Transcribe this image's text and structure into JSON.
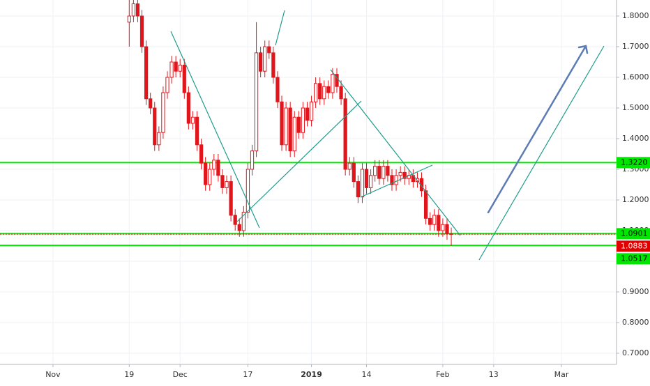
{
  "chart_data": {
    "type": "candlestick",
    "x": [
      18,
      19,
      20,
      21,
      22,
      23,
      24,
      25,
      26,
      27,
      28,
      29,
      30,
      31,
      32,
      33,
      34,
      35,
      36,
      37,
      38,
      39,
      40,
      41,
      42,
      43,
      44,
      45,
      46,
      47,
      48,
      49,
      50,
      51,
      52,
      53,
      54,
      55,
      56,
      57,
      58,
      59,
      60,
      61,
      62,
      63,
      64,
      65,
      66,
      67,
      68,
      69,
      70,
      71,
      72,
      73,
      74,
      75,
      76,
      77,
      78,
      79,
      80,
      81,
      82,
      83,
      84,
      85,
      86,
      87,
      88,
      89,
      90,
      91,
      92,
      93,
      94
    ],
    "open": [
      1.78,
      1.8,
      1.84,
      1.8,
      1.7,
      1.53,
      1.5,
      1.38,
      1.42,
      1.55,
      1.6,
      1.65,
      1.62,
      1.64,
      1.55,
      1.45,
      1.47,
      1.38,
      1.32,
      1.25,
      1.3,
      1.33,
      1.28,
      1.24,
      1.26,
      1.15,
      1.12,
      1.1,
      1.16,
      1.3,
      1.36,
      1.68,
      1.62,
      1.7,
      1.68,
      1.6,
      1.52,
      1.38,
      1.5,
      1.36,
      1.47,
      1.42,
      1.5,
      1.46,
      1.52,
      1.58,
      1.53,
      1.57,
      1.55,
      1.61,
      1.57,
      1.53,
      1.3,
      1.32,
      1.26,
      1.21,
      1.3,
      1.24,
      1.28,
      1.31,
      1.27,
      1.31,
      1.28,
      1.25,
      1.28,
      1.29,
      1.27,
      1.28,
      1.26,
      1.27,
      1.23,
      1.14,
      1.12,
      1.15,
      1.1,
      1.12,
      1.09
    ],
    "high": [
      1.86,
      1.86,
      1.86,
      1.82,
      1.72,
      1.55,
      1.52,
      1.44,
      1.57,
      1.62,
      1.67,
      1.67,
      1.66,
      1.66,
      1.57,
      1.49,
      1.49,
      1.4,
      1.34,
      1.32,
      1.35,
      1.35,
      1.3,
      1.28,
      1.28,
      1.17,
      1.14,
      1.18,
      1.32,
      1.38,
      1.78,
      1.7,
      1.72,
      1.72,
      1.7,
      1.62,
      1.54,
      1.52,
      1.52,
      1.49,
      1.49,
      1.52,
      1.52,
      1.54,
      1.6,
      1.6,
      1.59,
      1.59,
      1.63,
      1.63,
      1.59,
      1.55,
      1.34,
      1.34,
      1.28,
      1.32,
      1.32,
      1.3,
      1.33,
      1.33,
      1.33,
      1.33,
      1.3,
      1.3,
      1.31,
      1.31,
      1.3,
      1.3,
      1.29,
      1.29,
      1.25,
      1.16,
      1.17,
      1.17,
      1.14,
      1.14,
      1.11
    ],
    "low": [
      1.7,
      1.78,
      1.78,
      1.68,
      1.51,
      1.48,
      1.36,
      1.36,
      1.4,
      1.53,
      1.58,
      1.6,
      1.6,
      1.53,
      1.43,
      1.43,
      1.36,
      1.3,
      1.23,
      1.23,
      1.28,
      1.26,
      1.22,
      1.22,
      1.13,
      1.1,
      1.08,
      1.08,
      1.14,
      1.28,
      1.34,
      1.6,
      1.6,
      1.66,
      1.58,
      1.5,
      1.36,
      1.36,
      1.34,
      1.34,
      1.4,
      1.4,
      1.44,
      1.44,
      1.5,
      1.51,
      1.51,
      1.53,
      1.53,
      1.55,
      1.51,
      1.28,
      1.28,
      1.24,
      1.19,
      1.19,
      1.22,
      1.22,
      1.26,
      1.25,
      1.25,
      1.26,
      1.23,
      1.23,
      1.26,
      1.25,
      1.25,
      1.24,
      1.24,
      1.21,
      1.12,
      1.1,
      1.1,
      1.08,
      1.08,
      1.07,
      1.05
    ],
    "close": [
      1.8,
      1.84,
      1.8,
      1.7,
      1.53,
      1.5,
      1.38,
      1.42,
      1.55,
      1.6,
      1.65,
      1.62,
      1.64,
      1.55,
      1.45,
      1.47,
      1.38,
      1.32,
      1.25,
      1.3,
      1.33,
      1.28,
      1.24,
      1.26,
      1.15,
      1.12,
      1.1,
      1.16,
      1.3,
      1.36,
      1.68,
      1.62,
      1.7,
      1.68,
      1.6,
      1.52,
      1.38,
      1.5,
      1.36,
      1.47,
      1.42,
      1.5,
      1.46,
      1.52,
      1.58,
      1.53,
      1.57,
      1.55,
      1.61,
      1.57,
      1.53,
      1.3,
      1.32,
      1.26,
      1.21,
      1.3,
      1.24,
      1.28,
      1.31,
      1.27,
      1.31,
      1.28,
      1.25,
      1.28,
      1.29,
      1.27,
      1.28,
      1.26,
      1.27,
      1.23,
      1.14,
      1.12,
      1.15,
      1.1,
      1.12,
      1.09,
      1.0883
    ],
    "color": "#e0161c",
    "xlim": [
      -12.5,
      133
    ],
    "xticks": [
      {
        "value": 0,
        "label": "Nov"
      },
      {
        "value": 18,
        "label": "19"
      },
      {
        "value": 30,
        "label": "Dec"
      },
      {
        "value": 46,
        "label": "17"
      },
      {
        "value": 61,
        "label": "2019"
      },
      {
        "value": 74,
        "label": "14"
      },
      {
        "value": 92,
        "label": "Feb"
      },
      {
        "value": 104,
        "label": "13"
      },
      {
        "value": 120,
        "label": "Mar"
      }
    ],
    "ylim": [
      0.6636,
      1.8523
    ],
    "yticks": [
      {
        "value": 1.8,
        "label": "1.8000"
      },
      {
        "value": 1.7,
        "label": "1.7000"
      },
      {
        "value": 1.6,
        "label": "1.6000"
      },
      {
        "value": 1.5,
        "label": "1.5000"
      },
      {
        "value": 1.4,
        "label": "1.4000"
      },
      {
        "value": 1.3,
        "label": "1.3000"
      },
      {
        "value": 1.2,
        "label": "1.2000"
      },
      {
        "value": 1.1,
        "label": "1.1000"
      },
      {
        "value": 1.0,
        "label": "1.0000"
      },
      {
        "value": 0.9,
        "label": "0.9000"
      },
      {
        "value": 0.8,
        "label": "0.8000"
      },
      {
        "value": 0.7,
        "label": "0.7000"
      }
    ],
    "grid": true,
    "levels": [
      {
        "value": 1.322,
        "label": "1.3220",
        "color": "#00e600"
      },
      {
        "value": 1.0901,
        "label": "1.0901",
        "color": "#00e600"
      },
      {
        "value": 1.0883,
        "label": "1.0883",
        "color": "#e00000",
        "dotted": true
      },
      {
        "value": 1.0517,
        "label": "1.0517",
        "color": "#00e600"
      }
    ]
  }
}
